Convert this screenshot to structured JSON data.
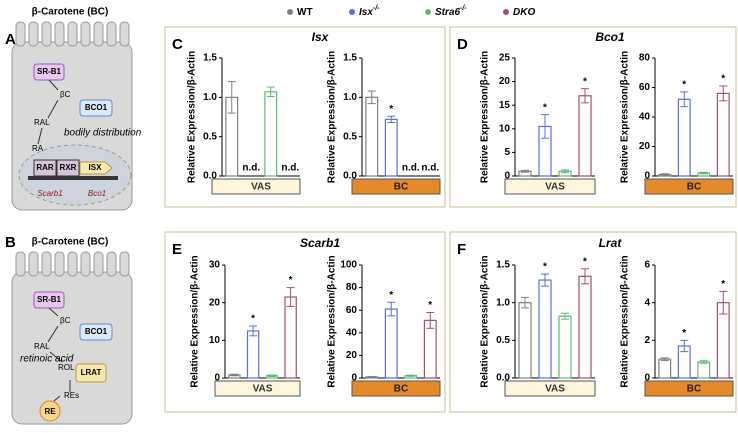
{
  "legend": [
    {
      "name": "WT",
      "sup": null,
      "color": "#808080"
    },
    {
      "name": "Isx",
      "sup": "-/-",
      "color": "#5b6ee1"
    },
    {
      "name": "Stra6",
      "sup": "-/-",
      "color": "#5fb97a"
    },
    {
      "name": "DKO",
      "sup": null,
      "color": "#a0506e"
    }
  ],
  "panels": [
    {
      "label": "C",
      "title": "Isx"
    },
    {
      "label": "D",
      "title": "Bco1"
    },
    {
      "label": "E",
      "title": "Scarb1"
    },
    {
      "label": "F",
      "title": "Lrat"
    }
  ],
  "diagrams": [
    {
      "label": "A",
      "title": "β-Carotene (BC)",
      "texts": [
        "SR-B1",
        "βC",
        "BCO1",
        "RAL",
        "bodily distribution",
        "RA",
        "RAR",
        "RXR",
        "ISX",
        "Scarb1",
        "Bco1"
      ]
    },
    {
      "label": "B",
      "title": "β-Carotene (BC)",
      "texts": [
        "SR-B1",
        "βC",
        "BCO1",
        "RAL",
        "retinoic acid",
        "ROL",
        "LRAT",
        "REs",
        "RE"
      ]
    }
  ],
  "chart_data": [
    {
      "type": "bar",
      "ylabel": "Relative Expression/β-Actin",
      "xlabel": "VAS",
      "values": [
        1.0,
        null,
        1.07,
        null
      ],
      "errors": [
        0.2,
        null,
        0.06,
        null
      ],
      "annotations": [
        null,
        "n.d.",
        null,
        "n.d."
      ],
      "ylim": [
        0,
        1.5
      ],
      "yticks": [
        {
          "value": 0,
          "label": "0.0"
        },
        {
          "value": 0.5,
          "label": "0.5"
        },
        {
          "value": 1,
          "label": "1.0"
        },
        {
          "value": 1.5,
          "label": "1.5"
        }
      ]
    },
    {
      "type": "bar",
      "ylabel": "Relative Expression/β-Actin",
      "xlabel": "BC",
      "values": [
        1.0,
        0.72,
        null,
        null
      ],
      "errors": [
        0.08,
        0.04,
        null,
        null
      ],
      "annotations": [
        null,
        "*",
        "n.d.",
        "n.d."
      ],
      "ylim": [
        0,
        1.5
      ],
      "yticks": [
        {
          "value": 0,
          "label": "0.0"
        },
        {
          "value": 0.5,
          "label": "0.5"
        },
        {
          "value": 1,
          "label": "1.0"
        },
        {
          "value": 1.5,
          "label": "1.5"
        }
      ]
    },
    {
      "type": "bar",
      "ylabel": "Relative Expression/β-Actin",
      "xlabel": "VAS",
      "values": [
        1,
        10.5,
        1,
        17
      ],
      "errors": [
        0.2,
        2.5,
        0.3,
        1.5
      ],
      "annotations": [
        null,
        "*",
        null,
        "*"
      ],
      "ylim": [
        0,
        25
      ],
      "yticks": [
        0,
        5,
        10,
        15,
        20,
        25
      ]
    },
    {
      "type": "bar",
      "ylabel": "Relative Expression/β-Actin",
      "xlabel": "BC",
      "values": [
        1,
        52,
        2,
        56
      ],
      "errors": [
        0.5,
        5,
        0.5,
        5
      ],
      "annotations": [
        null,
        "*",
        null,
        "*"
      ],
      "ylim": [
        0,
        80
      ],
      "yticks": [
        0,
        20,
        40,
        60,
        80
      ]
    },
    {
      "type": "bar",
      "ylabel": "Relative Expression/β-Actin",
      "xlabel": "VAS",
      "values": [
        0.8,
        12.5,
        0.6,
        21.5
      ],
      "errors": [
        0.2,
        1.3,
        0.2,
        2.5
      ],
      "annotations": [
        null,
        "*",
        null,
        "*"
      ],
      "ylim": [
        0,
        30
      ],
      "yticks": [
        0,
        10,
        20,
        30
      ]
    },
    {
      "type": "bar",
      "ylabel": "Relative Expression/β-Actin",
      "xlabel": "BC",
      "values": [
        1,
        61,
        2,
        51
      ],
      "errors": [
        0.3,
        6,
        0.5,
        7
      ],
      "annotations": [
        null,
        "*",
        null,
        "*"
      ],
      "ylim": [
        0,
        100
      ],
      "yticks": [
        0,
        20,
        40,
        60,
        80,
        100
      ]
    },
    {
      "type": "bar",
      "ylabel": "Relative Expression/β-Actin",
      "xlabel": "VAS",
      "values": [
        1.0,
        1.3,
        0.82,
        1.35
      ],
      "errors": [
        0.07,
        0.08,
        0.04,
        0.1
      ],
      "annotations": [
        null,
        "*",
        null,
        "*"
      ],
      "ylim": [
        0,
        1.5
      ],
      "yticks": [
        {
          "value": 0,
          "label": "0.0"
        },
        {
          "value": 0.5,
          "label": "0.5"
        },
        {
          "value": 1,
          "label": "1.0"
        },
        {
          "value": 1.5,
          "label": "1.5"
        }
      ]
    },
    {
      "type": "bar",
      "ylabel": "Relative Expression/β-Actin",
      "xlabel": "BC",
      "values": [
        1.0,
        1.7,
        0.85,
        4.0
      ],
      "errors": [
        0.07,
        0.3,
        0.07,
        0.6
      ],
      "annotations": [
        null,
        "*",
        null,
        "*"
      ],
      "ylim": [
        0,
        6
      ],
      "yticks": [
        0,
        2,
        4,
        6
      ]
    }
  ]
}
